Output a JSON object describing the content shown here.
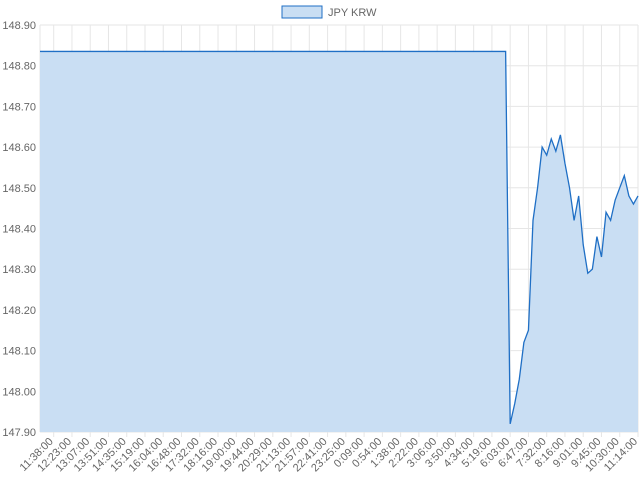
{
  "chart_data": {
    "type": "line",
    "legend": "top",
    "grid": true,
    "categories": [
      null,
      null,
      null,
      "11:38:00",
      null,
      null,
      null,
      "12:23:00",
      null,
      null,
      null,
      "13:07:00",
      null,
      null,
      null,
      "13:51:00",
      null,
      null,
      null,
      "14:35:00",
      null,
      null,
      null,
      "15:19:00",
      null,
      null,
      null,
      "16:04:00",
      null,
      null,
      null,
      "16:48:00",
      null,
      null,
      null,
      "17:32:00",
      null,
      null,
      null,
      "18:16:00",
      null,
      null,
      null,
      "19:00:00",
      null,
      null,
      null,
      "19:44:00",
      null,
      null,
      null,
      "20:29:00",
      null,
      null,
      null,
      "21:13:00",
      null,
      null,
      null,
      "21:57:00",
      null,
      null,
      null,
      "22:41:00",
      null,
      null,
      null,
      "23:25:00",
      null,
      null,
      null,
      "0:09:00",
      null,
      null,
      null,
      "0:54:00",
      null,
      null,
      null,
      "1:38:00",
      null,
      null,
      null,
      "2:22:00",
      null,
      null,
      null,
      "3:06:00",
      null,
      null,
      null,
      "3:50:00",
      null,
      null,
      null,
      "4:34:00",
      null,
      null,
      null,
      "5:19:00",
      null,
      null,
      null,
      "6:03:00",
      null,
      null,
      null,
      "6:47:00",
      null,
      null,
      null,
      "7:32:00",
      null,
      null,
      null,
      "8:16:00",
      null,
      null,
      null,
      "9:01:00",
      null,
      null,
      null,
      "9:45:00",
      null,
      null,
      null,
      "10:30:00",
      null,
      null,
      null,
      "11:14:00"
    ],
    "series": [
      {
        "name": "JPY KRW",
        "color": "#1f6fc5",
        "fill": "#c9def3",
        "values": [
          148.835,
          148.835,
          148.835,
          148.835,
          148.835,
          148.835,
          148.835,
          148.835,
          148.835,
          148.835,
          148.835,
          148.835,
          148.835,
          148.835,
          148.835,
          148.835,
          148.835,
          148.835,
          148.835,
          148.835,
          148.835,
          148.835,
          148.835,
          148.835,
          148.835,
          148.835,
          148.835,
          148.835,
          148.835,
          148.835,
          148.835,
          148.835,
          148.835,
          148.835,
          148.835,
          148.835,
          148.835,
          148.835,
          148.835,
          148.835,
          148.835,
          148.835,
          148.835,
          148.835,
          148.835,
          148.835,
          148.835,
          148.835,
          148.835,
          148.835,
          148.835,
          148.835,
          148.835,
          148.835,
          148.835,
          148.835,
          148.835,
          148.835,
          148.835,
          148.835,
          148.835,
          148.835,
          148.835,
          148.835,
          148.835,
          148.835,
          148.835,
          148.835,
          148.835,
          148.835,
          148.835,
          148.835,
          148.835,
          148.835,
          148.835,
          148.835,
          148.835,
          148.835,
          148.835,
          148.835,
          148.835,
          148.835,
          148.835,
          148.835,
          148.835,
          148.835,
          148.835,
          148.835,
          148.835,
          148.835,
          148.835,
          148.835,
          148.835,
          148.835,
          148.835,
          148.835,
          148.835,
          148.835,
          148.835,
          148.835,
          148.835,
          148.835,
          148.835,
          147.92,
          147.97,
          148.03,
          148.12,
          148.15,
          148.42,
          148.5,
          148.6,
          148.58,
          148.62,
          148.59,
          148.63,
          148.56,
          148.5,
          148.42,
          148.48,
          148.36,
          148.29,
          148.3,
          148.38,
          148.33,
          148.44,
          148.42,
          148.47,
          148.5,
          148.53,
          148.48,
          148.46,
          148.48
        ]
      }
    ],
    "ylim": [
      147.9,
      148.9
    ],
    "yticks": [
      {
        "value": 147.9,
        "label": "147.90"
      },
      {
        "value": 148.0,
        "label": "148.00"
      },
      {
        "value": 148.1,
        "label": "148.10"
      },
      {
        "value": 148.2,
        "label": "148.20"
      },
      {
        "value": 148.3,
        "label": "148.30"
      },
      {
        "value": 148.4,
        "label": "148.40"
      },
      {
        "value": 148.5,
        "label": "148.50"
      },
      {
        "value": 148.6,
        "label": "148.60"
      },
      {
        "value": 148.7,
        "label": "148.70"
      },
      {
        "value": 148.8,
        "label": "148.80"
      },
      {
        "value": 148.9,
        "label": "148.90"
      }
    ]
  }
}
